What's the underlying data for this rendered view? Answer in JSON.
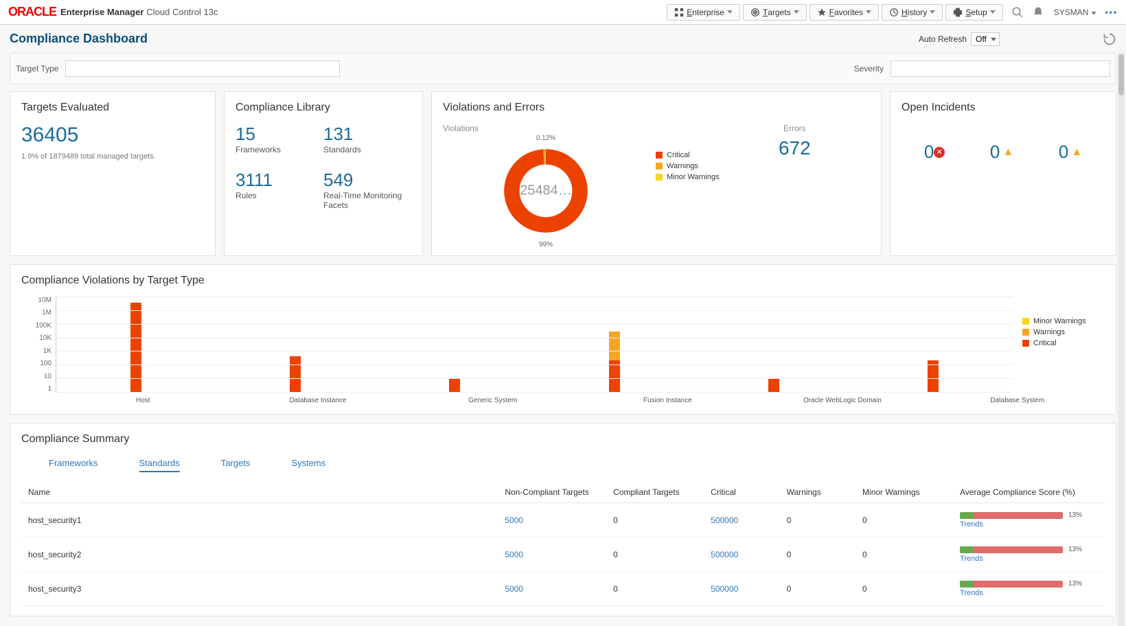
{
  "colors": {
    "critical": "#eb4200",
    "warning": "#f5a623",
    "minor": "#f9d71c",
    "link": "#2e77bb",
    "big_num": "#1a6b9c",
    "score_green": "#6aa84f",
    "score_red": "#e06c6c"
  },
  "header": {
    "brand": "ORACLE",
    "product": "Enterprise Manager",
    "edition": "Cloud Control 13c",
    "nav": [
      {
        "label": "Enterprise",
        "icon": "grid"
      },
      {
        "label": "Targets",
        "icon": "target"
      },
      {
        "label": "Favorites",
        "icon": "star"
      },
      {
        "label": "History",
        "icon": "clock"
      },
      {
        "label": "Setup",
        "icon": "gear"
      }
    ],
    "user": "SYSMAN"
  },
  "page_title": "Compliance Dashboard",
  "auto_refresh": {
    "label": "Auto Refresh",
    "value": "Off"
  },
  "filters": {
    "target_type_label": "Target Type",
    "severity_label": "Severity"
  },
  "targets_evaluated": {
    "title": "Targets Evaluated",
    "value": "36405",
    "sub": "1.9% of 1879489 total managed targets."
  },
  "compliance_library": {
    "title": "Compliance Library",
    "items": [
      {
        "value": "15",
        "label": "Frameworks"
      },
      {
        "value": "131",
        "label": "Standards"
      },
      {
        "value": "3111",
        "label": "Rules"
      },
      {
        "value": "549",
        "label": "Real-Time Monitoring Facets"
      }
    ]
  },
  "violations_errors": {
    "title": "Violations and Errors",
    "violations_label": "Violations",
    "errors_label": "Errors",
    "errors_value": "672",
    "donut": {
      "center": "25484…",
      "top_label": "0.12%",
      "bot_label": "99%",
      "slices": [
        {
          "label": "Critical",
          "pct": 99,
          "color": "#eb4200"
        },
        {
          "label": "Warnings",
          "pct": 0.88,
          "color": "#f5a623"
        },
        {
          "label": "Minor Warnings",
          "pct": 0.12,
          "color": "#f9d71c"
        }
      ]
    },
    "legend": [
      {
        "label": "Critical",
        "color": "#eb4200"
      },
      {
        "label": "Warnings",
        "color": "#f5a623"
      },
      {
        "label": "Minor Warnings",
        "color": "#f9d71c"
      }
    ]
  },
  "open_incidents": {
    "title": "Open Incidents",
    "items": [
      {
        "value": "0",
        "icon": "critical"
      },
      {
        "value": "0",
        "icon": "warning"
      },
      {
        "value": "0",
        "icon": "minor"
      }
    ]
  },
  "bar_chart": {
    "title": "Compliance Violations by Target Type",
    "y_ticks": [
      "10M",
      "1M",
      "100K",
      "10K",
      "1K",
      "100",
      "10",
      "1"
    ],
    "scale_max": 7,
    "legend": [
      {
        "label": "Minor Warnings",
        "color": "#f9d71c"
      },
      {
        "label": "Warnings",
        "color": "#f5a623"
      },
      {
        "label": "Critical",
        "color": "#eb4200"
      }
    ],
    "categories": [
      {
        "label": "Host",
        "segments": [
          {
            "color": "#eb4200",
            "log": 6.5
          }
        ]
      },
      {
        "label": "Database Instance",
        "segments": [
          {
            "color": "#eb4200",
            "log": 2.6
          }
        ]
      },
      {
        "label": "Generic System",
        "segments": [
          {
            "color": "#eb4200",
            "log": 1.0
          }
        ]
      },
      {
        "label": "Fusion Instance",
        "segments": [
          {
            "color": "#eb4200",
            "log": 2.3
          },
          {
            "color": "#f5a623",
            "log": 2.1
          }
        ]
      },
      {
        "label": "Oracle WebLogic Domain",
        "segments": [
          {
            "color": "#eb4200",
            "log": 1.0
          }
        ]
      },
      {
        "label": "Database System",
        "segments": [
          {
            "color": "#eb4200",
            "log": 2.3
          }
        ]
      }
    ]
  },
  "summary": {
    "title": "Compliance Summary",
    "tabs": [
      "Frameworks",
      "Standards",
      "Targets",
      "Systems"
    ],
    "active_tab": 1,
    "columns": [
      "Name",
      "Non-Compliant Targets",
      "Compliant Targets",
      "Critical",
      "Warnings",
      "Minor Warnings",
      "Average Compliance Score (%)"
    ],
    "trends_label": "Trends",
    "rows": [
      {
        "name": "host_security1",
        "non_compliant": "5000",
        "compliant": "0",
        "critical": "500000",
        "warnings": "0",
        "minor": "0",
        "score": 13
      },
      {
        "name": "host_security2",
        "non_compliant": "5000",
        "compliant": "0",
        "critical": "500000",
        "warnings": "0",
        "minor": "0",
        "score": 13
      },
      {
        "name": "host_security3",
        "non_compliant": "5000",
        "compliant": "0",
        "critical": "500000",
        "warnings": "0",
        "minor": "0",
        "score": 13
      }
    ]
  }
}
